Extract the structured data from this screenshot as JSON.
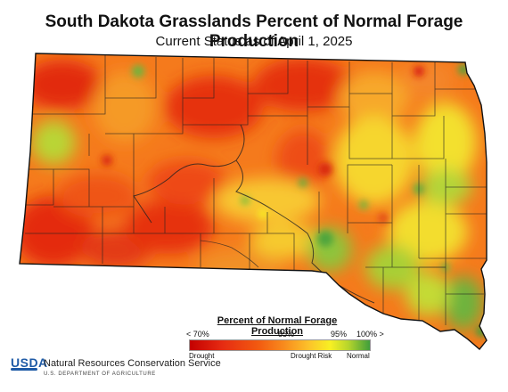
{
  "header": {
    "title": "South Dakota Grasslands Percent of Normal Forage Production",
    "subtitle": "Current Status as of April 1, 2025"
  },
  "legend": {
    "title": "Percent of Normal Forage Production",
    "ticks": [
      "< 70%",
      "85%",
      "95%",
      "100% >"
    ],
    "captions": [
      "Drought",
      "Drought Risk",
      "Normal"
    ],
    "colors": [
      "#c40000",
      "#f25a10",
      "#fcc22a",
      "#f8f023",
      "#3f9e3b"
    ]
  },
  "footer": {
    "logo": "USDA",
    "agency": "Natural Resources Conservation Service",
    "department": "U.S. DEPARTMENT OF AGRICULTURE"
  },
  "map": {
    "region": "South Dakota",
    "color_scale": {
      "min_label": "< 70%",
      "max_label": "100% >"
    }
  }
}
